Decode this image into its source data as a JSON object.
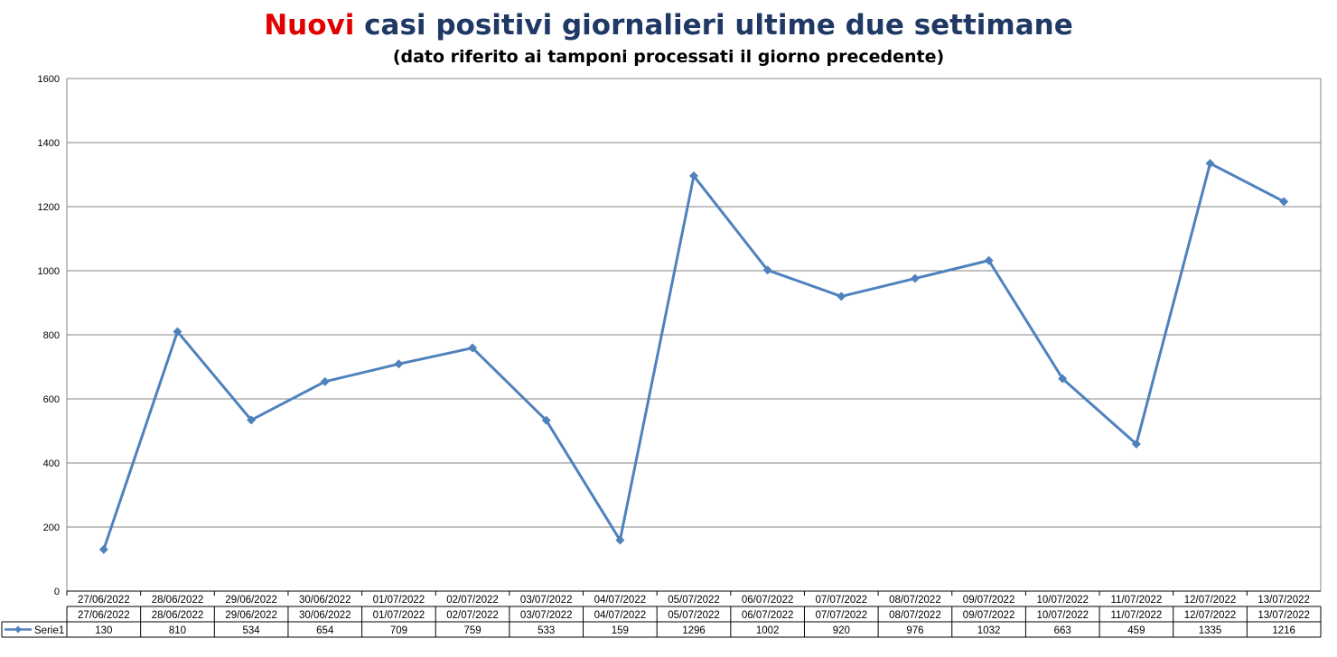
{
  "title": {
    "accent_word": "Nuovi",
    "rest": " casi positivi giornalieri ultime due settimane",
    "accent_color": "#e00000",
    "main_color": "#1f3864"
  },
  "subtitle": "(dato riferito ai tamponi processati il giorno precedente)",
  "chart_data": {
    "type": "line",
    "categories": [
      "27/06/2022",
      "28/06/2022",
      "29/06/2022",
      "30/06/2022",
      "01/07/2022",
      "02/07/2022",
      "03/07/2022",
      "04/07/2022",
      "05/07/2022",
      "06/07/2022",
      "07/07/2022",
      "08/07/2022",
      "09/07/2022",
      "10/07/2022",
      "11/07/2022",
      "12/07/2022",
      "13/07/2022"
    ],
    "series": [
      {
        "name": "Serie1",
        "color": "#4f81bd",
        "values": [
          130,
          810,
          534,
          654,
          709,
          759,
          533,
          159,
          1296,
          1002,
          920,
          976,
          1032,
          663,
          459,
          1335,
          1216
        ]
      }
    ],
    "ylim": [
      0,
      1600
    ],
    "yticks": [
      0,
      200,
      400,
      600,
      800,
      1000,
      1200,
      1400,
      1600
    ],
    "grid": true,
    "data_table": true,
    "marker": "diamond"
  }
}
